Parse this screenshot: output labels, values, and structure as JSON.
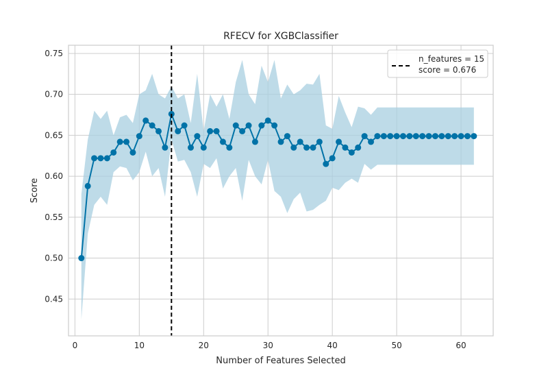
{
  "chart_data": {
    "type": "line",
    "title": "RFECV for XGBClassifier",
    "xlabel": "Number of Features Selected",
    "ylabel": "Score",
    "xlim": [
      -1,
      65
    ],
    "ylim": [
      0.405,
      0.76
    ],
    "xticks": [
      0,
      10,
      20,
      30,
      40,
      50,
      60
    ],
    "yticks": [
      0.45,
      0.5,
      0.55,
      0.6,
      0.65,
      0.7,
      0.75
    ],
    "grid": true,
    "legend_position": "top-right",
    "optimal_n_features": 15,
    "legend": [
      "n_features = 15",
      "score = 0.676"
    ],
    "colors": {
      "line": "#0072a7",
      "band": "#a8cfe0",
      "vline": "#000000",
      "grid": "#cccccc",
      "frame": "#cccccc"
    },
    "series": [
      {
        "x": [
          1,
          2,
          3,
          4,
          5,
          6,
          7,
          8,
          9,
          10,
          11,
          12,
          13,
          14,
          15,
          16,
          17,
          18,
          19,
          20,
          21,
          22,
          23,
          24,
          25,
          26,
          27,
          28,
          29,
          30,
          31,
          32,
          33,
          34,
          35,
          36,
          37,
          38,
          39,
          40,
          41,
          42,
          43,
          44,
          45,
          46,
          47,
          48,
          49,
          50,
          51,
          52,
          53,
          54,
          55,
          56,
          57,
          58,
          59,
          60,
          61,
          62
        ],
        "mean": [
          0.5,
          0.588,
          0.622,
          0.622,
          0.622,
          0.629,
          0.642,
          0.642,
          0.629,
          0.649,
          0.668,
          0.662,
          0.655,
          0.635,
          0.676,
          0.655,
          0.662,
          0.635,
          0.649,
          0.635,
          0.655,
          0.655,
          0.642,
          0.635,
          0.662,
          0.655,
          0.662,
          0.642,
          0.662,
          0.668,
          0.662,
          0.642,
          0.649,
          0.635,
          0.642,
          0.635,
          0.635,
          0.642,
          0.615,
          0.622,
          0.642,
          0.635,
          0.629,
          0.635,
          0.649,
          0.642,
          0.649,
          0.649,
          0.649,
          0.649,
          0.649,
          0.649,
          0.649,
          0.649,
          0.649,
          0.649,
          0.649,
          0.649,
          0.649,
          0.649,
          0.649,
          0.649
        ],
        "upper": [
          0.578,
          0.645,
          0.68,
          0.67,
          0.68,
          0.65,
          0.672,
          0.675,
          0.665,
          0.7,
          0.705,
          0.725,
          0.7,
          0.695,
          0.71,
          0.695,
          0.7,
          0.665,
          0.725,
          0.655,
          0.7,
          0.685,
          0.7,
          0.67,
          0.715,
          0.742,
          0.7,
          0.688,
          0.735,
          0.715,
          0.742,
          0.695,
          0.712,
          0.7,
          0.705,
          0.713,
          0.712,
          0.725,
          0.662,
          0.658,
          0.698,
          0.678,
          0.66,
          0.685,
          0.683,
          0.675,
          0.684,
          0.684,
          0.684,
          0.684,
          0.684,
          0.684,
          0.684,
          0.684,
          0.684,
          0.684,
          0.684,
          0.684,
          0.684,
          0.684,
          0.684,
          0.684
        ],
        "lower": [
          0.425,
          0.53,
          0.565,
          0.575,
          0.565,
          0.605,
          0.612,
          0.61,
          0.595,
          0.605,
          0.63,
          0.6,
          0.61,
          0.575,
          0.645,
          0.618,
          0.62,
          0.605,
          0.575,
          0.615,
          0.61,
          0.622,
          0.585,
          0.6,
          0.61,
          0.57,
          0.62,
          0.6,
          0.59,
          0.62,
          0.582,
          0.575,
          0.555,
          0.572,
          0.58,
          0.557,
          0.559,
          0.565,
          0.57,
          0.586,
          0.583,
          0.592,
          0.597,
          0.592,
          0.615,
          0.608,
          0.614,
          0.614,
          0.614,
          0.614,
          0.614,
          0.614,
          0.614,
          0.614,
          0.614,
          0.614,
          0.614,
          0.614,
          0.614,
          0.614,
          0.614,
          0.614
        ]
      }
    ]
  }
}
